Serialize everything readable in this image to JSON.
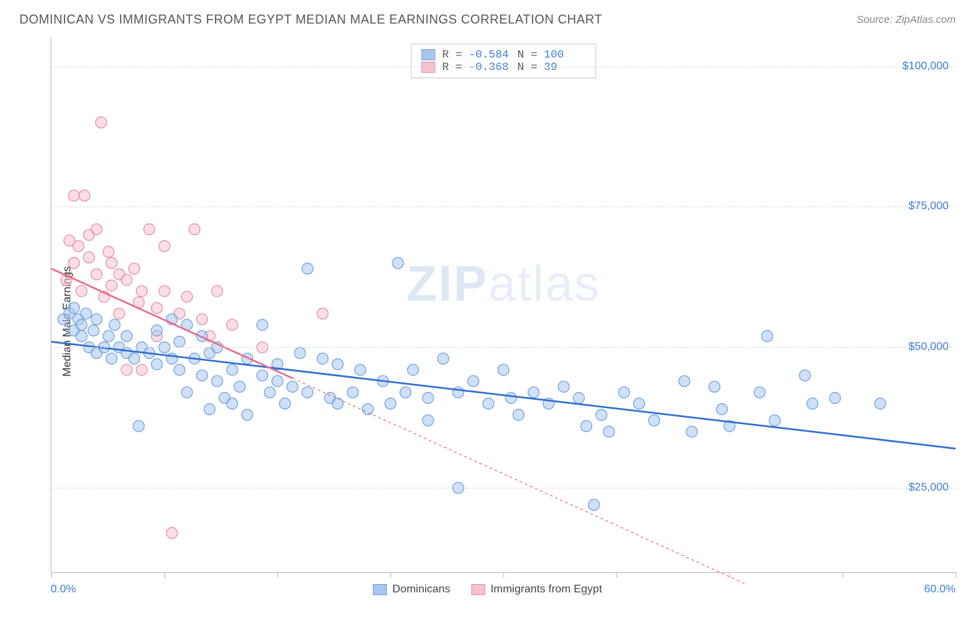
{
  "title": "DOMINICAN VS IMMIGRANTS FROM EGYPT MEDIAN MALE EARNINGS CORRELATION CHART",
  "source_prefix": "Source: ",
  "source_name": "ZipAtlas.com",
  "ylabel": "Median Male Earnings",
  "watermark_bold": "ZIP",
  "watermark_rest": "atlas",
  "chart": {
    "type": "scatter",
    "xlim": [
      0,
      60
    ],
    "ylim": [
      10000,
      105000
    ],
    "x_min_label": "0.0%",
    "x_max_label": "60.0%",
    "y_ticks": [
      25000,
      50000,
      75000,
      100000
    ],
    "y_tick_labels": [
      "$25,000",
      "$50,000",
      "$75,000",
      "$100,000"
    ],
    "x_tick_positions": [
      0,
      7.5,
      15,
      22.5,
      30,
      37.5,
      45,
      52.5,
      60
    ],
    "background_color": "#ffffff",
    "grid_color": "#dddddd",
    "axis_color": "#bbbbbb",
    "marker_radius": 8,
    "marker_opacity": 0.55,
    "series": [
      {
        "name": "Dominicans",
        "fill": "#a9c7ec",
        "stroke": "#6fa3e0",
        "line_color": "#2f6fd0",
        "line_width": 2.5,
        "line_dash": "none",
        "R_label": "R = ",
        "R": "-0.584",
        "N_label": "N = ",
        "N": "100",
        "trend": {
          "x1": 0,
          "y1": 51000,
          "x2": 60,
          "y2": 32000
        },
        "points": [
          [
            0.8,
            55000
          ],
          [
            1.2,
            56000
          ],
          [
            1.5,
            53000
          ],
          [
            1.5,
            57000
          ],
          [
            1.8,
            55000
          ],
          [
            2.0,
            52000
          ],
          [
            2.0,
            54000
          ],
          [
            2.3,
            56000
          ],
          [
            2.5,
            50000
          ],
          [
            2.8,
            53000
          ],
          [
            3.0,
            55000
          ],
          [
            3.0,
            49000
          ],
          [
            3.5,
            50000
          ],
          [
            3.8,
            52000
          ],
          [
            4.0,
            48000
          ],
          [
            4.2,
            54000
          ],
          [
            4.5,
            50000
          ],
          [
            5.0,
            49000
          ],
          [
            5.0,
            52000
          ],
          [
            5.5,
            48000
          ],
          [
            5.8,
            36000
          ],
          [
            6.0,
            50000
          ],
          [
            6.5,
            49000
          ],
          [
            7.0,
            47000
          ],
          [
            7.0,
            53000
          ],
          [
            7.5,
            50000
          ],
          [
            8.0,
            48000
          ],
          [
            8.0,
            55000
          ],
          [
            8.5,
            46000
          ],
          [
            8.5,
            51000
          ],
          [
            9.0,
            54000
          ],
          [
            9.0,
            42000
          ],
          [
            9.5,
            48000
          ],
          [
            10.0,
            45000
          ],
          [
            10.0,
            52000
          ],
          [
            10.5,
            49000
          ],
          [
            10.5,
            39000
          ],
          [
            11.0,
            50000
          ],
          [
            11.0,
            44000
          ],
          [
            11.5,
            41000
          ],
          [
            12.0,
            46000
          ],
          [
            12.0,
            40000
          ],
          [
            12.5,
            43000
          ],
          [
            13.0,
            48000
          ],
          [
            13.0,
            38000
          ],
          [
            14.0,
            45000
          ],
          [
            14.0,
            54000
          ],
          [
            14.5,
            42000
          ],
          [
            15.0,
            44000
          ],
          [
            15.0,
            47000
          ],
          [
            15.5,
            40000
          ],
          [
            16.0,
            43000
          ],
          [
            16.5,
            49000
          ],
          [
            17.0,
            42000
          ],
          [
            17.0,
            64000
          ],
          [
            18.0,
            48000
          ],
          [
            18.5,
            41000
          ],
          [
            19.0,
            47000
          ],
          [
            19.0,
            40000
          ],
          [
            20.0,
            42000
          ],
          [
            20.5,
            46000
          ],
          [
            21.0,
            39000
          ],
          [
            22.0,
            44000
          ],
          [
            22.5,
            40000
          ],
          [
            23.0,
            65000
          ],
          [
            23.5,
            42000
          ],
          [
            24.0,
            46000
          ],
          [
            25.0,
            41000
          ],
          [
            25.0,
            37000
          ],
          [
            26.0,
            48000
          ],
          [
            27.0,
            42000
          ],
          [
            27.0,
            25000
          ],
          [
            28.0,
            44000
          ],
          [
            29.0,
            40000
          ],
          [
            30.0,
            46000
          ],
          [
            30.5,
            41000
          ],
          [
            31.0,
            38000
          ],
          [
            32.0,
            42000
          ],
          [
            33.0,
            40000
          ],
          [
            34.0,
            43000
          ],
          [
            35.0,
            41000
          ],
          [
            35.5,
            36000
          ],
          [
            36.0,
            22000
          ],
          [
            36.5,
            38000
          ],
          [
            37.0,
            35000
          ],
          [
            38.0,
            42000
          ],
          [
            39.0,
            40000
          ],
          [
            40.0,
            37000
          ],
          [
            42.0,
            44000
          ],
          [
            42.5,
            35000
          ],
          [
            44.0,
            43000
          ],
          [
            44.5,
            39000
          ],
          [
            45.0,
            36000
          ],
          [
            47.0,
            42000
          ],
          [
            47.5,
            52000
          ],
          [
            48.0,
            37000
          ],
          [
            50.0,
            45000
          ],
          [
            50.5,
            40000
          ],
          [
            52.0,
            41000
          ],
          [
            55.0,
            40000
          ]
        ]
      },
      {
        "name": "Immigrants from Egypt",
        "fill": "#f4c2cf",
        "stroke": "#e88fa6",
        "line_color": "#e86b8a",
        "line_width": 2.5,
        "line_dash": "4 4",
        "R_label": "R = ",
        "R": "-0.368",
        "N_label": "N = ",
        "N": " 39",
        "trend": {
          "x1": 0,
          "y1": 64000,
          "x2": 46,
          "y2": 8000
        },
        "trend_solid_until_x": 16,
        "points": [
          [
            1.0,
            62000
          ],
          [
            1.2,
            69000
          ],
          [
            1.5,
            65000
          ],
          [
            1.5,
            77000
          ],
          [
            1.8,
            68000
          ],
          [
            2.0,
            60000
          ],
          [
            2.2,
            77000
          ],
          [
            2.5,
            66000
          ],
          [
            2.5,
            70000
          ],
          [
            3.0,
            63000
          ],
          [
            3.0,
            71000
          ],
          [
            3.3,
            90000
          ],
          [
            3.5,
            59000
          ],
          [
            3.8,
            67000
          ],
          [
            4.0,
            65000
          ],
          [
            4.0,
            61000
          ],
          [
            4.5,
            63000
          ],
          [
            4.5,
            56000
          ],
          [
            5.0,
            62000
          ],
          [
            5.0,
            46000
          ],
          [
            5.5,
            64000
          ],
          [
            5.8,
            58000
          ],
          [
            6.0,
            60000
          ],
          [
            6.0,
            46000
          ],
          [
            6.5,
            71000
          ],
          [
            7.0,
            57000
          ],
          [
            7.0,
            52000
          ],
          [
            7.5,
            60000
          ],
          [
            7.5,
            68000
          ],
          [
            8.0,
            17000
          ],
          [
            8.5,
            56000
          ],
          [
            9.0,
            59000
          ],
          [
            9.5,
            71000
          ],
          [
            10.0,
            55000
          ],
          [
            10.5,
            52000
          ],
          [
            11.0,
            60000
          ],
          [
            12.0,
            54000
          ],
          [
            14.0,
            50000
          ],
          [
            18.0,
            56000
          ]
        ]
      }
    ]
  }
}
